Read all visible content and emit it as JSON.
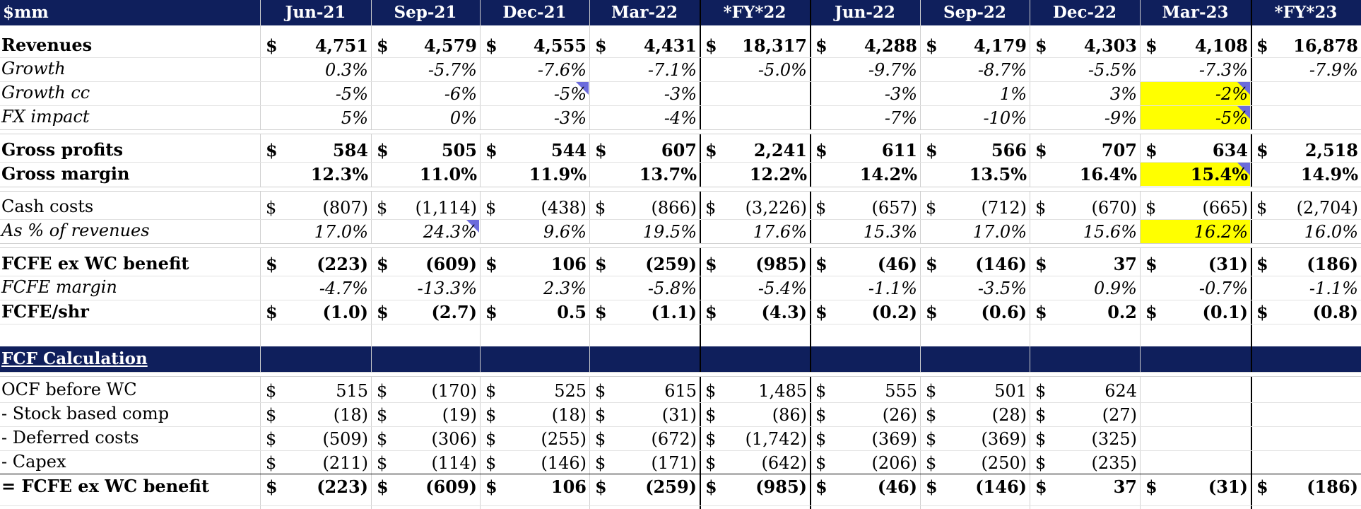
{
  "header": {
    "unit": "$mm",
    "columns": [
      "Jun-21",
      "Sep-21",
      "Dec-21",
      "Mar-22",
      "*FY*22",
      "Jun-22",
      "Sep-22",
      "Dec-22",
      "Mar-23",
      "*FY*23"
    ]
  },
  "rows": [
    {
      "label": "Revenues",
      "style": "b",
      "dollar": true,
      "values": [
        "4,751",
        "4,579",
        "4,555",
        "4,431",
        "18,317",
        "4,288",
        "4,179",
        "4,303",
        "4,108",
        "16,878"
      ]
    },
    {
      "label": "Growth",
      "style": "i",
      "dollar": false,
      "values": [
        "0.3%",
        "-5.7%",
        "-7.6%",
        "-7.1%",
        "-5.0%",
        "-9.7%",
        "-8.7%",
        "-5.5%",
        "-7.3%",
        "-7.9%"
      ]
    },
    {
      "label": "Growth cc",
      "style": "i",
      "dollar": false,
      "values": [
        "-5%",
        "-6%",
        "-5%",
        "-3%",
        "",
        "-3%",
        "1%",
        "3%",
        "-2%",
        ""
      ]
    },
    {
      "label": "FX impact",
      "style": "i",
      "dollar": false,
      "values": [
        "5%",
        "0%",
        "-3%",
        "-4%",
        "",
        "-7%",
        "-10%",
        "-9%",
        "-5%",
        ""
      ]
    },
    {
      "label": "Gross profits",
      "style": "b",
      "dollar": true,
      "values": [
        "584",
        "505",
        "544",
        "607",
        "2,241",
        "611",
        "566",
        "707",
        "634",
        "2,518"
      ]
    },
    {
      "label": "Gross margin",
      "style": "b",
      "dollar": false,
      "values": [
        "12.3%",
        "11.0%",
        "11.9%",
        "13.7%",
        "12.2%",
        "14.2%",
        "13.5%",
        "16.4%",
        "15.4%",
        "14.9%"
      ]
    },
    {
      "label": "Cash costs",
      "style": "n",
      "dollar": true,
      "values": [
        "(807)",
        "(1,114)",
        "(438)",
        "(866)",
        "(3,226)",
        "(657)",
        "(712)",
        "(670)",
        "(665)",
        "(2,704)"
      ]
    },
    {
      "label": "As % of revenues",
      "style": "i",
      "dollar": false,
      "values": [
        "17.0%",
        "24.3%",
        "9.6%",
        "19.5%",
        "17.6%",
        "15.3%",
        "17.0%",
        "15.6%",
        "16.2%",
        "16.0%"
      ]
    },
    {
      "label": "FCFE ex WC benefit",
      "style": "b",
      "dollar": true,
      "values": [
        "(223)",
        "(609)",
        "106",
        "(259)",
        "(985)",
        "(46)",
        "(146)",
        "37",
        "(31)",
        "(186)"
      ]
    },
    {
      "label": "FCFE margin",
      "style": "i",
      "dollar": false,
      "values": [
        "-4.7%",
        "-13.3%",
        "2.3%",
        "-5.8%",
        "-5.4%",
        "-1.1%",
        "-3.5%",
        "0.9%",
        "-0.7%",
        "-1.1%"
      ]
    },
    {
      "label": "FCFE/shr",
      "style": "b",
      "dollar": true,
      "values": [
        "(1.0)",
        "(2.7)",
        "0.5",
        "(1.1)",
        "(4.3)",
        "(0.2)",
        "(0.6)",
        "0.2",
        "(0.1)",
        "(0.8)"
      ]
    }
  ],
  "section": {
    "title": "FCF Calculation"
  },
  "fcf_rows": [
    {
      "label": "OCF before WC",
      "style": "n",
      "dollar": true,
      "values": [
        "515",
        "(170)",
        "525",
        "615",
        "1,485",
        "555",
        "501",
        "624",
        "",
        ""
      ]
    },
    {
      "label": "- Stock based comp",
      "style": "n",
      "dollar": true,
      "values": [
        "(18)",
        "(19)",
        "(18)",
        "(31)",
        "(86)",
        "(26)",
        "(28)",
        "(27)",
        "",
        ""
      ]
    },
    {
      "label": "- Deferred costs",
      "style": "n",
      "dollar": true,
      "values": [
        "(509)",
        "(306)",
        "(255)",
        "(672)",
        "(1,742)",
        "(369)",
        "(369)",
        "(325)",
        "",
        ""
      ]
    },
    {
      "label": "- Capex",
      "style": "n",
      "dollar": true,
      "values": [
        "(211)",
        "(114)",
        "(146)",
        "(171)",
        "(642)",
        "(206)",
        "(250)",
        "(235)",
        "",
        ""
      ]
    },
    {
      "label": "= FCFE ex WC benefit",
      "style": "b",
      "dollar": true,
      "values": [
        "(223)",
        "(609)",
        "106",
        "(259)",
        "(985)",
        "(46)",
        "(146)",
        "37",
        "(31)",
        "(186)"
      ]
    }
  ],
  "dollar_sign": "$",
  "colors": {
    "header_bg": "#0f1f5c",
    "highlight": "#ffff00",
    "flag": "#6b6bdc"
  }
}
